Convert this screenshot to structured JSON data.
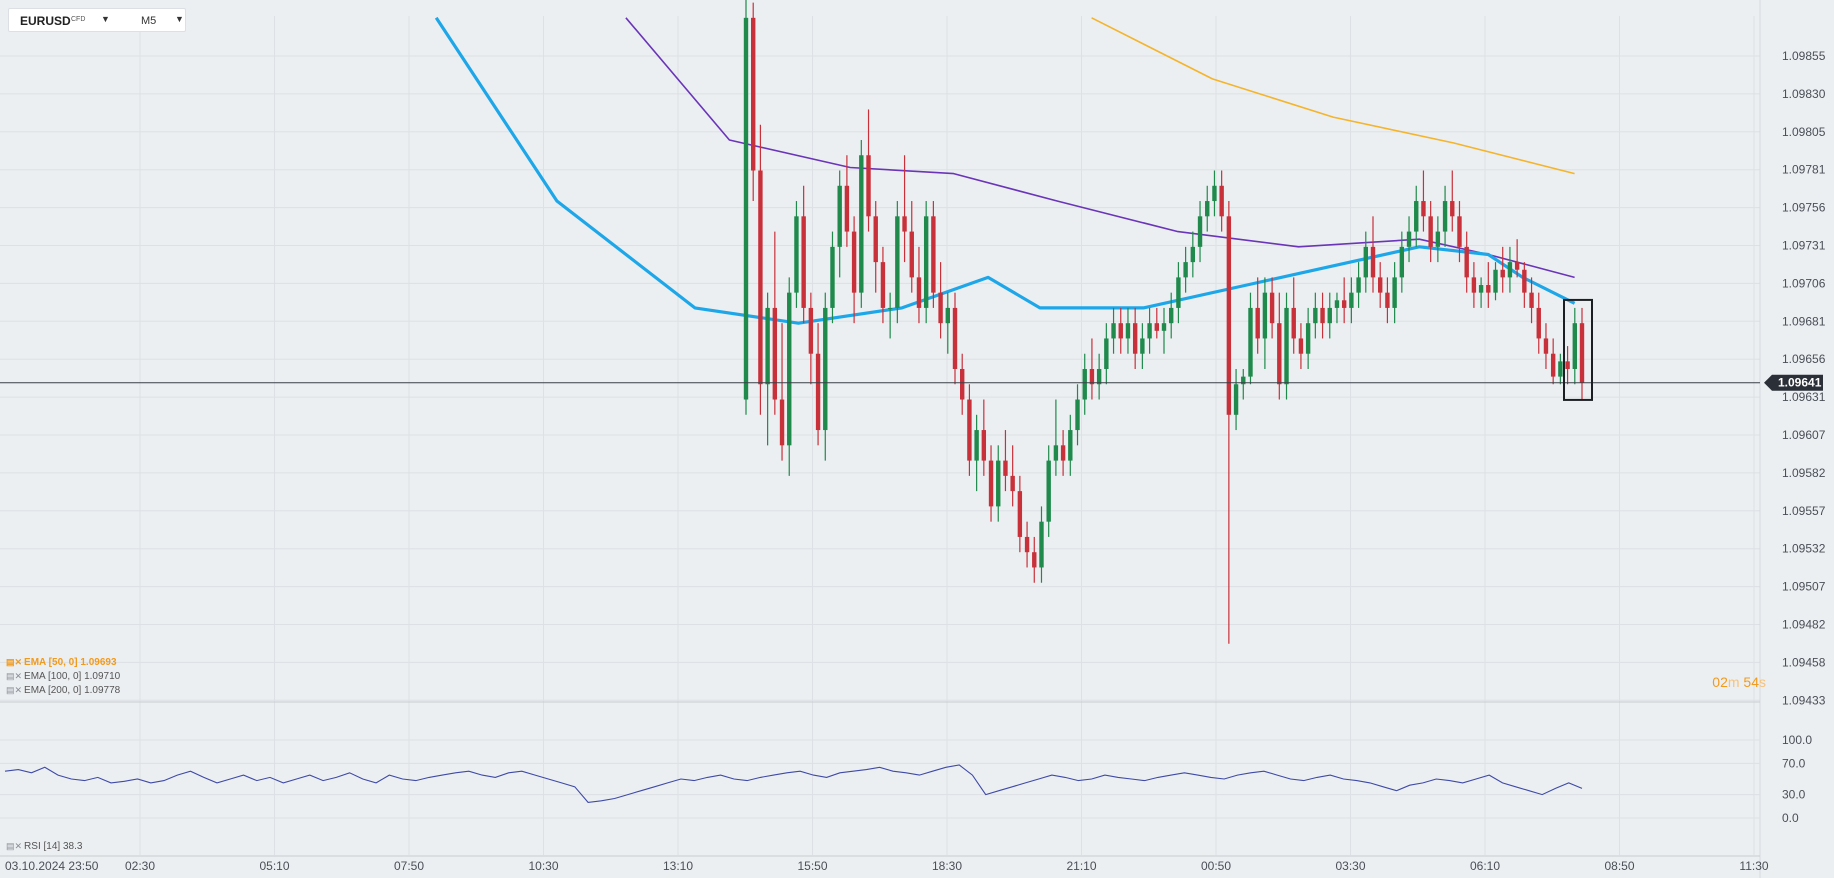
{
  "symbol": {
    "name": "EURUSD",
    "type": "CFD",
    "timeframe": "M5"
  },
  "price_axis": {
    "ticks": [
      "1.09855",
      "1.09830",
      "1.09805",
      "1.09781",
      "1.09756",
      "1.09731",
      "1.09706",
      "1.09681",
      "1.09656",
      "1.09631",
      "1.09607",
      "1.09582",
      "1.09557",
      "1.09532",
      "1.09507",
      "1.09482",
      "1.09458",
      "1.09433"
    ],
    "current_price": "1.09641"
  },
  "time_axis": {
    "labels": [
      "03.10.2024  23:50",
      "02:30",
      "05:10",
      "07:50",
      "10:30",
      "13:10",
      "15:50",
      "18:30",
      "21:10",
      "00:50",
      "03:30",
      "06:10",
      "08:50",
      "11:30"
    ]
  },
  "indicators": {
    "ema50": {
      "label": "EMA  [50,  0]  1.09693",
      "color": "#1ea7e8"
    },
    "ema100": {
      "label": "EMA  [100,  0]  1.09710",
      "color": "#6a35b8"
    },
    "ema200": {
      "label": "EMA  [200,  0]  1.09778",
      "color": "#f4b42b"
    },
    "rsi": {
      "label": "RSI  [14]  38.3",
      "color": "#3e4aa6",
      "levels": [
        "100.0",
        "70.0",
        "30.0",
        "0.0"
      ]
    }
  },
  "countdown": {
    "minutes": "02",
    "min_unit": "m",
    "seconds": "54",
    "sec_unit": "s"
  },
  "colors": {
    "bull": "#1f8a4c",
    "bear": "#c8303a",
    "background": "#eceff2",
    "grid": "#dde0e4"
  },
  "chart_data": {
    "type": "candlestick",
    "price_range": [
      1.09433,
      1.0988
    ],
    "candles_ohlc": [
      [
        1.0963,
        1.099,
        1.0962,
        1.0988
      ],
      [
        1.0988,
        1.0989,
        1.0976,
        1.0978
      ],
      [
        1.0978,
        1.0981,
        1.0962,
        1.0964
      ],
      [
        1.0964,
        1.097,
        1.096,
        1.0969
      ],
      [
        1.0969,
        1.0974,
        1.0962,
        1.0963
      ],
      [
        1.0963,
        1.0968,
        1.0959,
        1.096
      ],
      [
        1.096,
        1.0971,
        1.0958,
        1.097
      ],
      [
        1.097,
        1.0976,
        1.0969,
        1.0975
      ],
      [
        1.0975,
        1.0977,
        1.0968,
        1.0969
      ],
      [
        1.0969,
        1.097,
        1.0964,
        1.0966
      ],
      [
        1.0966,
        1.0968,
        1.096,
        1.0961
      ],
      [
        1.0961,
        1.097,
        1.0959,
        1.0969
      ],
      [
        1.0969,
        1.0974,
        1.0968,
        1.0973
      ],
      [
        1.0973,
        1.0978,
        1.0971,
        1.0977
      ],
      [
        1.0977,
        1.0979,
        1.0973,
        1.0974
      ],
      [
        1.0974,
        1.0975,
        1.0968,
        1.097
      ],
      [
        1.097,
        1.098,
        1.0969,
        1.0979
      ],
      [
        1.0979,
        1.0982,
        1.0974,
        1.0975
      ],
      [
        1.0975,
        1.0976,
        1.097,
        1.0972
      ],
      [
        1.0972,
        1.0973,
        1.0968,
        1.0969
      ],
      [
        1.0969,
        1.097,
        1.0967,
        1.0969
      ],
      [
        1.0969,
        1.0976,
        1.0968,
        1.0975
      ],
      [
        1.0975,
        1.0979,
        1.0972,
        1.0974
      ],
      [
        1.0974,
        1.0976,
        1.097,
        1.0971
      ],
      [
        1.0971,
        1.0973,
        1.0968,
        1.0969
      ],
      [
        1.0969,
        1.0976,
        1.0968,
        1.0975
      ],
      [
        1.0975,
        1.0976,
        1.0969,
        1.097
      ],
      [
        1.097,
        1.0972,
        1.0967,
        1.0968
      ],
      [
        1.0968,
        1.097,
        1.0966,
        1.0969
      ],
      [
        1.0969,
        1.097,
        1.0964,
        1.0965
      ],
      [
        1.0965,
        1.0966,
        1.0962,
        1.0963
      ],
      [
        1.0963,
        1.0964,
        1.0958,
        1.0959
      ],
      [
        1.0959,
        1.0962,
        1.0957,
        1.0961
      ],
      [
        1.0961,
        1.0963,
        1.0958,
        1.0959
      ],
      [
        1.0959,
        1.096,
        1.0955,
        1.0956
      ],
      [
        1.0956,
        1.096,
        1.0955,
        1.0959
      ],
      [
        1.0959,
        1.0961,
        1.0957,
        1.0958
      ],
      [
        1.0958,
        1.096,
        1.0956,
        1.0957
      ],
      [
        1.0957,
        1.0958,
        1.0953,
        1.0954
      ],
      [
        1.0954,
        1.0955,
        1.0952,
        1.0953
      ],
      [
        1.0953,
        1.0954,
        1.0951,
        1.0952
      ],
      [
        1.0952,
        1.0956,
        1.0951,
        1.0955
      ],
      [
        1.0955,
        1.096,
        1.0954,
        1.0959
      ],
      [
        1.0959,
        1.0963,
        1.0958,
        1.096
      ],
      [
        1.096,
        1.0961,
        1.0958,
        1.0959
      ],
      [
        1.0959,
        1.0962,
        1.0958,
        1.0961
      ],
      [
        1.0961,
        1.0964,
        1.096,
        1.0963
      ],
      [
        1.0963,
        1.0966,
        1.0962,
        1.0965
      ],
      [
        1.0965,
        1.0967,
        1.0963,
        1.0964
      ],
      [
        1.0964,
        1.0966,
        1.0963,
        1.0965
      ],
      [
        1.0965,
        1.0968,
        1.0964,
        1.0967
      ],
      [
        1.0967,
        1.0969,
        1.0966,
        1.0968
      ],
      [
        1.0968,
        1.0969,
        1.0966,
        1.0967
      ],
      [
        1.0967,
        1.0969,
        1.0966,
        1.0968
      ],
      [
        1.0968,
        1.0969,
        1.0965,
        1.0966
      ],
      [
        1.0966,
        1.0968,
        1.0965,
        1.0967
      ],
      [
        1.0967,
        1.0969,
        1.0966,
        1.0968
      ],
      [
        1.0968,
        1.0969,
        1.0967,
        1.09675
      ],
      [
        1.09675,
        1.0969,
        1.0966,
        1.0968
      ],
      [
        1.0968,
        1.097,
        1.0967,
        1.0969
      ],
      [
        1.0969,
        1.0972,
        1.0968,
        1.0971
      ],
      [
        1.0971,
        1.0973,
        1.097,
        1.0972
      ],
      [
        1.0972,
        1.0974,
        1.0971,
        1.0973
      ],
      [
        1.0973,
        1.0976,
        1.0972,
        1.0975
      ],
      [
        1.0975,
        1.0977,
        1.0974,
        1.0976
      ],
      [
        1.0976,
        1.0978,
        1.0975,
        1.0977
      ],
      [
        1.0977,
        1.0978,
        1.0974,
        1.0975
      ],
      [
        1.0975,
        1.0976,
        1.0947,
        1.0962
      ],
      [
        1.0962,
        1.0965,
        1.0961,
        1.0964
      ],
      [
        1.0964,
        1.0965,
        1.0963,
        1.09645
      ],
      [
        1.09645,
        1.097,
        1.0964,
        1.0969
      ],
      [
        1.0969,
        1.0971,
        1.0966,
        1.0967
      ],
      [
        1.0967,
        1.0971,
        1.0965,
        1.097
      ],
      [
        1.097,
        1.0971,
        1.0967,
        1.0968
      ],
      [
        1.0968,
        1.097,
        1.0963,
        1.0964
      ],
      [
        1.0964,
        1.097,
        1.0963,
        1.0969
      ],
      [
        1.0969,
        1.0971,
        1.0966,
        1.0967
      ],
      [
        1.0967,
        1.0968,
        1.0965,
        1.0966
      ],
      [
        1.0966,
        1.0969,
        1.0965,
        1.0968
      ],
      [
        1.0968,
        1.097,
        1.0967,
        1.0969
      ],
      [
        1.0969,
        1.097,
        1.0967,
        1.0968
      ],
      [
        1.0968,
        1.097,
        1.0967,
        1.0969
      ],
      [
        1.0969,
        1.097,
        1.0968,
        1.09695
      ],
      [
        1.09695,
        1.0971,
        1.0968,
        1.0969
      ],
      [
        1.0969,
        1.0971,
        1.0968,
        1.097
      ],
      [
        1.097,
        1.0972,
        1.0969,
        1.0971
      ],
      [
        1.0971,
        1.0974,
        1.097,
        1.0973
      ],
      [
        1.0973,
        1.0975,
        1.097,
        1.0971
      ],
      [
        1.0971,
        1.0972,
        1.0969,
        1.097
      ],
      [
        1.097,
        1.0971,
        1.0968,
        1.0969
      ],
      [
        1.0969,
        1.0972,
        1.0968,
        1.0971
      ],
      [
        1.0971,
        1.0974,
        1.097,
        1.0973
      ],
      [
        1.0973,
        1.0975,
        1.0972,
        1.0974
      ],
      [
        1.0974,
        1.0977,
        1.0973,
        1.0976
      ],
      [
        1.0976,
        1.0978,
        1.0974,
        1.0975
      ],
      [
        1.0975,
        1.0976,
        1.0972,
        1.0973
      ],
      [
        1.0973,
        1.0975,
        1.0972,
        1.0974
      ],
      [
        1.0974,
        1.0977,
        1.0973,
        1.0976
      ],
      [
        1.0976,
        1.0978,
        1.0974,
        1.0975
      ],
      [
        1.0975,
        1.0976,
        1.0972,
        1.0973
      ],
      [
        1.0973,
        1.0974,
        1.097,
        1.0971
      ],
      [
        1.0971,
        1.0972,
        1.0969,
        1.097
      ],
      [
        1.097,
        1.0971,
        1.0969,
        1.09705
      ],
      [
        1.09705,
        1.0972,
        1.0969,
        1.097
      ],
      [
        1.097,
        1.0972,
        1.09695,
        1.09715
      ],
      [
        1.09715,
        1.0973,
        1.097,
        1.0971
      ],
      [
        1.0971,
        1.0973,
        1.097,
        1.0972
      ],
      [
        1.0972,
        1.09735,
        1.0971,
        1.09715
      ],
      [
        1.09715,
        1.0972,
        1.0969,
        1.097
      ],
      [
        1.097,
        1.0971,
        1.0968,
        1.0969
      ],
      [
        1.0969,
        1.097,
        1.0966,
        1.0967
      ],
      [
        1.0967,
        1.0968,
        1.0965,
        1.0966
      ],
      [
        1.0966,
        1.0967,
        1.0964,
        1.09645
      ],
      [
        1.09645,
        1.0966,
        1.0964,
        1.09655
      ],
      [
        1.09655,
        1.09665,
        1.0964,
        1.0965
      ],
      [
        1.0965,
        1.0969,
        1.0964,
        1.0968
      ],
      [
        1.0968,
        1.0969,
        1.0963,
        1.09641
      ]
    ],
    "ema50": [
      [
        0.25,
        1.0988
      ],
      [
        0.32,
        1.0976
      ],
      [
        0.4,
        1.0969
      ],
      [
        0.46,
        1.0968
      ],
      [
        0.52,
        1.0969
      ],
      [
        0.57,
        1.0971
      ],
      [
        0.6,
        1.0969
      ],
      [
        0.66,
        1.0969
      ],
      [
        0.72,
        1.09705
      ],
      [
        0.78,
        1.0972
      ],
      [
        0.82,
        1.0973
      ],
      [
        0.86,
        1.09725
      ],
      [
        0.88,
        1.0971
      ],
      [
        0.91,
        1.09693
      ]
    ],
    "ema100": [
      [
        0.36,
        1.0988
      ],
      [
        0.42,
        1.098
      ],
      [
        0.49,
        1.09782
      ],
      [
        0.55,
        1.09778
      ],
      [
        0.61,
        1.0976
      ],
      [
        0.68,
        1.0974
      ],
      [
        0.75,
        1.0973
      ],
      [
        0.82,
        1.09735
      ],
      [
        0.86,
        1.09725
      ],
      [
        0.91,
        1.0971
      ]
    ],
    "ema200": [
      [
        0.63,
        1.0988
      ],
      [
        0.7,
        1.0984
      ],
      [
        0.77,
        1.09815
      ],
      [
        0.84,
        1.09798
      ],
      [
        0.91,
        1.09778
      ]
    ],
    "rsi": [
      60,
      62,
      58,
      65,
      55,
      50,
      48,
      52,
      45,
      47,
      50,
      45,
      48,
      55,
      60,
      52,
      45,
      50,
      55,
      48,
      52,
      45,
      50,
      55,
      48,
      52,
      58,
      50,
      45,
      55,
      50,
      48,
      52,
      55,
      58,
      60,
      55,
      52,
      58,
      60,
      55,
      50,
      45,
      40,
      20,
      22,
      25,
      30,
      35,
      40,
      45,
      50,
      48,
      52,
      55,
      50,
      48,
      52,
      55,
      58,
      60,
      55,
      52,
      58,
      60,
      62,
      65,
      60,
      58,
      55,
      60,
      65,
      68,
      55,
      30,
      35,
      40,
      45,
      50,
      55,
      52,
      48,
      50,
      55,
      52,
      50,
      48,
      52,
      55,
      58,
      55,
      52,
      50,
      55,
      58,
      60,
      55,
      50,
      48,
      52,
      55,
      50,
      48,
      45,
      40,
      35,
      42,
      45,
      50,
      48,
      45,
      50,
      55,
      45,
      40,
      35,
      30,
      38,
      45,
      38
    ]
  }
}
